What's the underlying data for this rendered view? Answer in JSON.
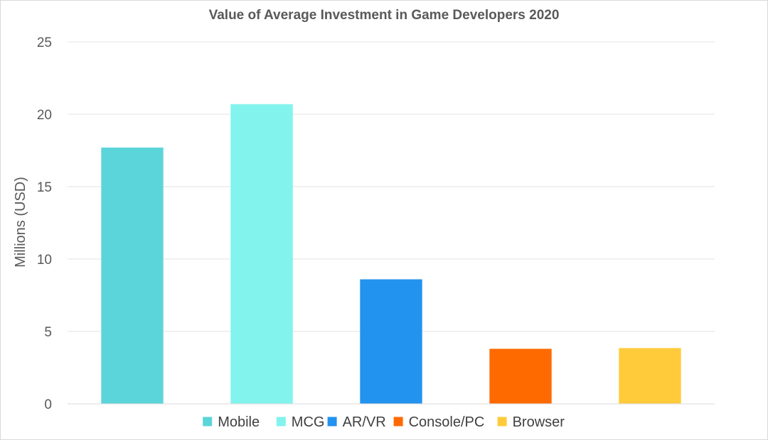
{
  "chart_data": {
    "type": "bar",
    "title": "Value of Average Investment in Game Developers 2020",
    "xlabel": "",
    "ylabel": "Millions (USD)",
    "ylim": [
      0,
      25
    ],
    "yticks": [
      0,
      5,
      10,
      15,
      20,
      25
    ],
    "grid": true,
    "legend_position": "bottom",
    "categories": [
      "Mobile",
      "MCG",
      "AR/VR",
      "Console/PC",
      "Browser"
    ],
    "values": [
      17.7,
      20.7,
      8.6,
      3.8,
      3.85
    ],
    "colors": [
      "#5bd5d9",
      "#83f3ed",
      "#2293ef",
      "#ff6a00",
      "#ffcb3b"
    ]
  }
}
